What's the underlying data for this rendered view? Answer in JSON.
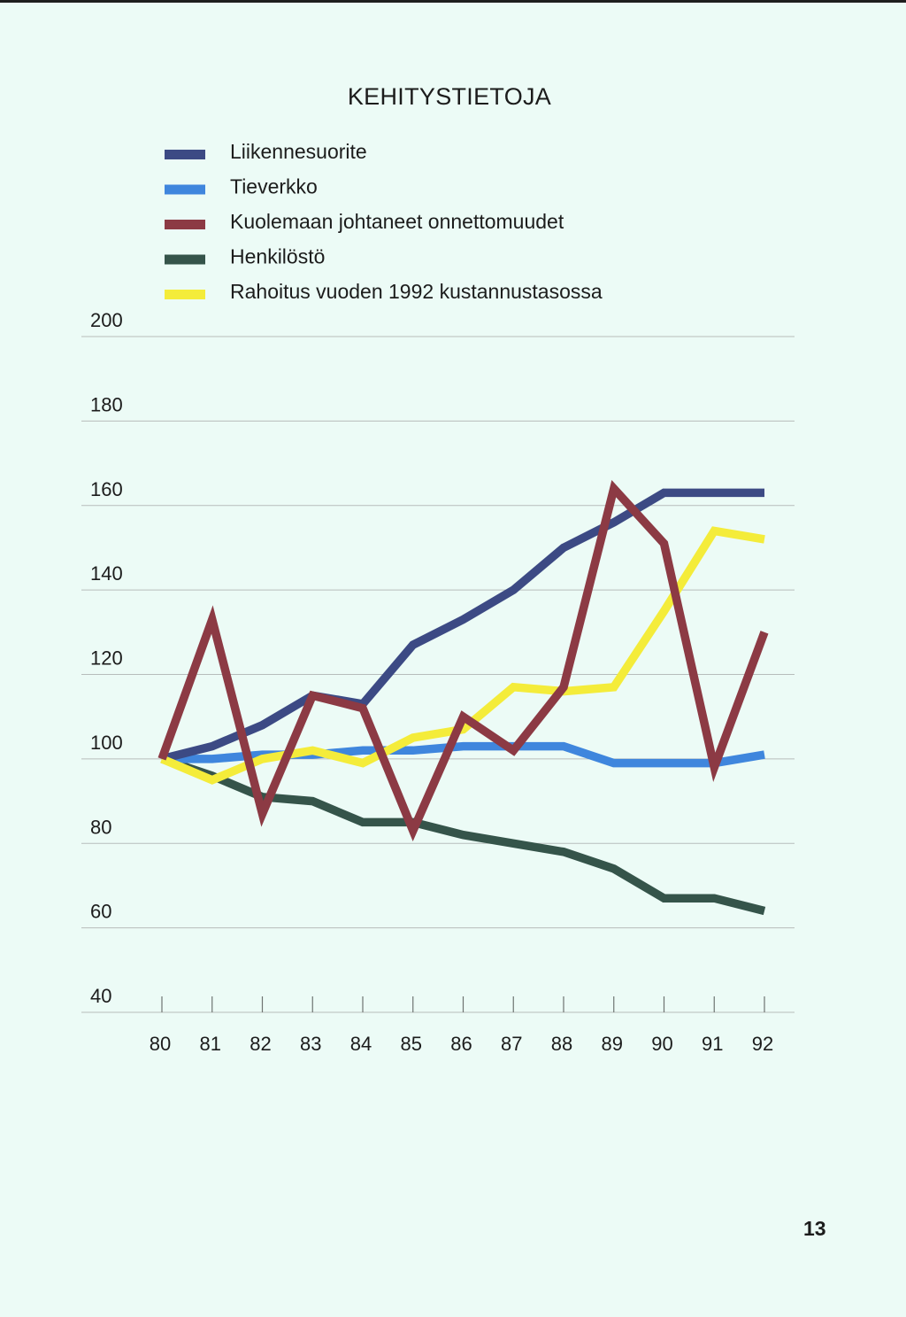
{
  "page_number": "13",
  "colors": {
    "background": "#ecfbf6",
    "gridline": "#b7bdbb",
    "text": "#1c1c1c"
  },
  "chart_data": {
    "type": "line",
    "title": "KEHITYSTIETOJA",
    "xlabel": "",
    "ylabel": "",
    "categories": [
      "80",
      "81",
      "82",
      "83",
      "84",
      "85",
      "86",
      "87",
      "88",
      "89",
      "90",
      "91",
      "92"
    ],
    "ylim": [
      40,
      200
    ],
    "yticks": [
      200,
      180,
      160,
      140,
      120,
      100,
      80,
      60,
      40
    ],
    "grid": true,
    "legend_position": "top",
    "series": [
      {
        "name": "Liikennesuorite",
        "color": "#3c4a84",
        "values": [
          100,
          103,
          108,
          115,
          113,
          127,
          133,
          140,
          150,
          156,
          163,
          163,
          163
        ]
      },
      {
        "name": "Tieverkko",
        "color": "#3f86dd",
        "values": [
          100,
          100,
          101,
          101,
          102,
          102,
          103,
          103,
          103,
          99,
          99,
          99,
          101
        ]
      },
      {
        "name": "Kuolemaan johtaneet onnettomuudet",
        "color": "#8c3a44",
        "values": [
          100,
          133,
          87,
          115,
          112,
          83,
          110,
          102,
          117,
          164,
          151,
          98,
          130
        ]
      },
      {
        "name": "Henkilöstö",
        "color": "#35544a",
        "values": [
          100,
          96,
          91,
          90,
          85,
          85,
          82,
          80,
          78,
          74,
          67,
          67,
          64
        ]
      },
      {
        "name": "Rahoitus vuoden 1992 kustannustasossa",
        "color": "#f4ec3a",
        "values": [
          100,
          95,
          100,
          102,
          99,
          105,
          107,
          117,
          116,
          117,
          135,
          154,
          152
        ]
      }
    ]
  }
}
